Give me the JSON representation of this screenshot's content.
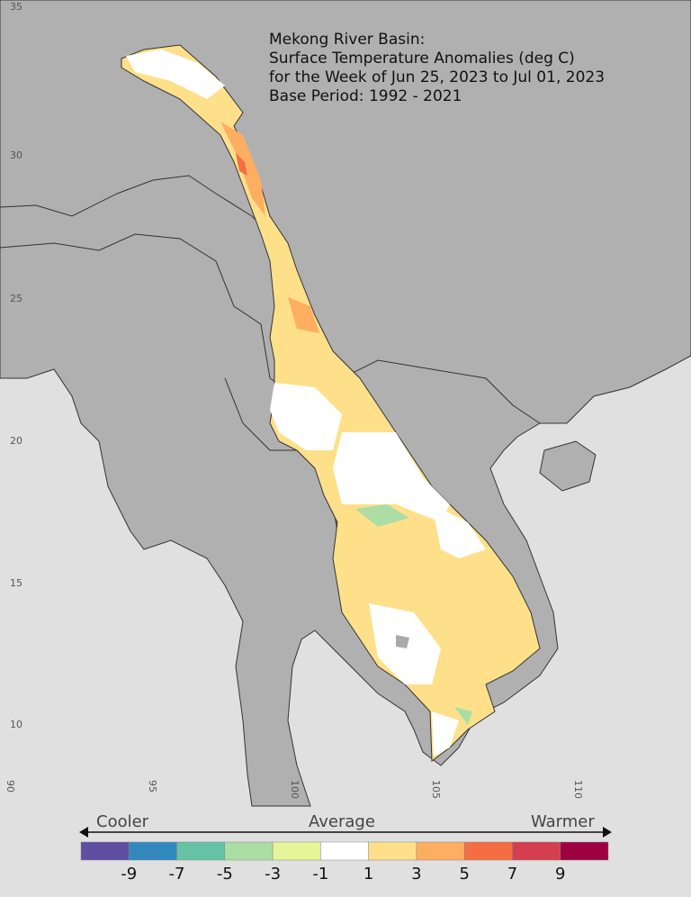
{
  "title": {
    "lines": [
      "Mekong River Basin:",
      "Surface Temperature Anomalies (deg C)",
      "for the Week of Jun 25, 2023 to Jul 01, 2023",
      "Base Period: 1992 - 2021"
    ]
  },
  "map": {
    "region": "Mekong River Basin",
    "lat_ticks": [
      "35",
      "30",
      "25",
      "20",
      "15",
      "10"
    ],
    "lon_ticks": [
      "90",
      "95",
      "100",
      "105",
      "110"
    ],
    "land_color": "#b0b0b0",
    "ocean_color": "#e0e0e0",
    "dominant_anomaly": "1 to 3"
  },
  "colorbar": {
    "cooler_label": "Cooler",
    "average_label": "Average",
    "warmer_label": "Warmer",
    "colors": [
      "#5e4fa2",
      "#3288bd",
      "#66c2a5",
      "#abdda4",
      "#e6f598",
      "#ffffff",
      "#fee08b",
      "#fdae61",
      "#f46d43",
      "#d53e4f",
      "#9e0142"
    ],
    "labels": [
      "-9",
      "-7",
      "-5",
      "-3",
      "-1",
      "1",
      "3",
      "5",
      "7",
      "9"
    ]
  }
}
